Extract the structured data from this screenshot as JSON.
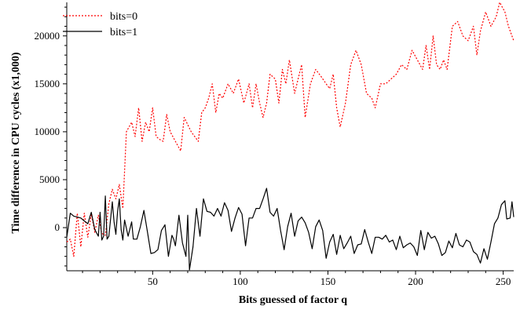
{
  "chart_data": {
    "type": "line",
    "title": "",
    "xlabel": "Bits guessed of factor q",
    "ylabel": "Time difference in CPU cycles (x1,000)",
    "xlim": [
      1,
      256
    ],
    "ylim": [
      -4500,
      23500
    ],
    "x_ticks": [
      50,
      100,
      150,
      200,
      250
    ],
    "y_ticks": [
      0,
      5000,
      10000,
      15000,
      20000
    ],
    "x_tick_labels": [
      "50",
      "100",
      "150",
      "200",
      "250"
    ],
    "y_tick_labels": [
      "0",
      "5000",
      "10000",
      "15000",
      "20000"
    ],
    "grid": false,
    "legend_position": "top-left",
    "series": [
      {
        "name": "bits=0",
        "color": "#ff0000",
        "dash": "dotted",
        "points": [
          [
            1,
            -1500
          ],
          [
            3,
            -1200
          ],
          [
            5,
            -3000
          ],
          [
            7,
            1500
          ],
          [
            9,
            -2000
          ],
          [
            11,
            1500
          ],
          [
            13,
            -1000
          ],
          [
            15,
            1400
          ],
          [
            17,
            -500
          ],
          [
            19,
            1300
          ],
          [
            21,
            -600
          ],
          [
            23,
            -800
          ],
          [
            25,
            2500
          ],
          [
            27,
            4000
          ],
          [
            29,
            3000
          ],
          [
            31,
            4500
          ],
          [
            33,
            2000
          ],
          [
            35,
            10000
          ],
          [
            38,
            11000
          ],
          [
            40,
            9500
          ],
          [
            42,
            12500
          ],
          [
            44,
            9000
          ],
          [
            46,
            11000
          ],
          [
            48,
            10000
          ],
          [
            50,
            12500
          ],
          [
            52,
            9500
          ],
          [
            54,
            9200
          ],
          [
            56,
            9000
          ],
          [
            58,
            11800
          ],
          [
            60,
            10000
          ],
          [
            63,
            9000
          ],
          [
            66,
            8000
          ],
          [
            68,
            11500
          ],
          [
            72,
            10000
          ],
          [
            76,
            9000
          ],
          [
            78,
            12000
          ],
          [
            80,
            12500
          ],
          [
            82,
            13500
          ],
          [
            84,
            15000
          ],
          [
            86,
            12000
          ],
          [
            88,
            14000
          ],
          [
            90,
            13500
          ],
          [
            93,
            15000
          ],
          [
            96,
            14000
          ],
          [
            99,
            15500
          ],
          [
            102,
            13000
          ],
          [
            105,
            15000
          ],
          [
            107,
            12500
          ],
          [
            109,
            15000
          ],
          [
            111,
            13000
          ],
          [
            113,
            11500
          ],
          [
            115,
            13000
          ],
          [
            117,
            16000
          ],
          [
            120,
            15500
          ],
          [
            122,
            13000
          ],
          [
            124,
            16500
          ],
          [
            126,
            15000
          ],
          [
            128,
            17500
          ],
          [
            131,
            14000
          ],
          [
            133,
            15500
          ],
          [
            135,
            17000
          ],
          [
            137,
            11500
          ],
          [
            140,
            15000
          ],
          [
            143,
            16500
          ],
          [
            146,
            15800
          ],
          [
            149,
            15000
          ],
          [
            151,
            14500
          ],
          [
            153,
            16000
          ],
          [
            155,
            12500
          ],
          [
            157,
            10500
          ],
          [
            160,
            13000
          ],
          [
            163,
            17000
          ],
          [
            166,
            18500
          ],
          [
            169,
            17000
          ],
          [
            172,
            14000
          ],
          [
            175,
            13500
          ],
          [
            177,
            12500
          ],
          [
            180,
            15000
          ],
          [
            183,
            15000
          ],
          [
            186,
            15500
          ],
          [
            189,
            16000
          ],
          [
            192,
            17000
          ],
          [
            195,
            16500
          ],
          [
            198,
            18500
          ],
          [
            201,
            17500
          ],
          [
            204,
            16500
          ],
          [
            206,
            19000
          ],
          [
            208,
            16500
          ],
          [
            210,
            20000
          ],
          [
            212,
            17000
          ],
          [
            214,
            16500
          ],
          [
            216,
            17500
          ],
          [
            218,
            16500
          ],
          [
            221,
            21000
          ],
          [
            224,
            21500
          ],
          [
            227,
            20000
          ],
          [
            230,
            19500
          ],
          [
            233,
            21000
          ],
          [
            235,
            18000
          ],
          [
            237,
            20500
          ],
          [
            240,
            22500
          ],
          [
            243,
            21000
          ],
          [
            246,
            22000
          ],
          [
            248,
            23500
          ],
          [
            251,
            22500
          ],
          [
            253,
            21000
          ],
          [
            256,
            19500
          ]
        ]
      },
      {
        "name": "bits=1",
        "color": "#000000",
        "dash": "solid",
        "points": [
          [
            1,
            -1000
          ],
          [
            3,
            1500
          ],
          [
            5,
            1200
          ],
          [
            7,
            1100
          ],
          [
            9,
            1000
          ],
          [
            11,
            700
          ],
          [
            13,
            400
          ],
          [
            15,
            1600
          ],
          [
            17,
            -200
          ],
          [
            19,
            -900
          ],
          [
            20,
            1600
          ],
          [
            21,
            -1300
          ],
          [
            22,
            -900
          ],
          [
            23,
            3300
          ],
          [
            24,
            -1200
          ],
          [
            25,
            -900
          ],
          [
            27,
            2700
          ],
          [
            28,
            600
          ],
          [
            29,
            -700
          ],
          [
            30,
            1700
          ],
          [
            31,
            3000
          ],
          [
            32,
            -200
          ],
          [
            33,
            -1300
          ],
          [
            34,
            800
          ],
          [
            36,
            -900
          ],
          [
            38,
            600
          ],
          [
            39,
            -1200
          ],
          [
            41,
            -1200
          ],
          [
            43,
            100
          ],
          [
            45,
            1800
          ],
          [
            47,
            -400
          ],
          [
            49,
            -2700
          ],
          [
            51,
            -2600
          ],
          [
            53,
            -2300
          ],
          [
            55,
            -300
          ],
          [
            57,
            300
          ],
          [
            59,
            -3000
          ],
          [
            61,
            -800
          ],
          [
            62,
            -1200
          ],
          [
            63,
            -1900
          ],
          [
            65,
            1300
          ],
          [
            67,
            -1600
          ],
          [
            69,
            -3000
          ],
          [
            70,
            1300
          ],
          [
            71,
            -4400
          ],
          [
            73,
            -2000
          ],
          [
            75,
            2000
          ],
          [
            77,
            -900
          ],
          [
            79,
            3000
          ],
          [
            81,
            1700
          ],
          [
            83,
            1600
          ],
          [
            85,
            1200
          ],
          [
            87,
            2000
          ],
          [
            89,
            1200
          ],
          [
            91,
            2600
          ],
          [
            93,
            1800
          ],
          [
            95,
            -400
          ],
          [
            97,
            1000
          ],
          [
            99,
            2100
          ],
          [
            101,
            1400
          ],
          [
            103,
            -1900
          ],
          [
            105,
            1000
          ],
          [
            107,
            1000
          ],
          [
            109,
            2000
          ],
          [
            111,
            2000
          ],
          [
            113,
            3000
          ],
          [
            115,
            4100
          ],
          [
            117,
            1600
          ],
          [
            119,
            1200
          ],
          [
            121,
            2000
          ],
          [
            123,
            -300
          ],
          [
            125,
            -2300
          ],
          [
            127,
            100
          ],
          [
            129,
            1500
          ],
          [
            131,
            -900
          ],
          [
            133,
            700
          ],
          [
            135,
            1100
          ],
          [
            137,
            500
          ],
          [
            139,
            -500
          ],
          [
            141,
            -2200
          ],
          [
            143,
            100
          ],
          [
            145,
            800
          ],
          [
            147,
            -300
          ],
          [
            149,
            -3200
          ],
          [
            151,
            -1500
          ],
          [
            153,
            -700
          ],
          [
            155,
            -2800
          ],
          [
            157,
            -800
          ],
          [
            159,
            -2200
          ],
          [
            161,
            -1600
          ],
          [
            163,
            -900
          ],
          [
            165,
            -2700
          ],
          [
            167,
            -1800
          ],
          [
            169,
            -1700
          ],
          [
            171,
            -200
          ],
          [
            173,
            -1500
          ],
          [
            175,
            -2700
          ],
          [
            177,
            -1000
          ],
          [
            179,
            -1000
          ],
          [
            181,
            -1200
          ],
          [
            183,
            -800
          ],
          [
            185,
            -1500
          ],
          [
            187,
            -1300
          ],
          [
            189,
            -2300
          ],
          [
            191,
            -900
          ],
          [
            193,
            -2100
          ],
          [
            195,
            -1800
          ],
          [
            197,
            -1600
          ],
          [
            199,
            -2000
          ],
          [
            201,
            -2900
          ],
          [
            203,
            -300
          ],
          [
            205,
            -2300
          ],
          [
            207,
            -500
          ],
          [
            209,
            -1100
          ],
          [
            211,
            -900
          ],
          [
            213,
            -1700
          ],
          [
            215,
            -2900
          ],
          [
            217,
            -2600
          ],
          [
            219,
            -1400
          ],
          [
            221,
            -2100
          ],
          [
            223,
            -600
          ],
          [
            225,
            -1800
          ],
          [
            227,
            -2000
          ],
          [
            229,
            -1300
          ],
          [
            231,
            -1500
          ],
          [
            233,
            -2500
          ],
          [
            235,
            -2800
          ],
          [
            237,
            -3700
          ],
          [
            239,
            -2200
          ],
          [
            241,
            -3300
          ],
          [
            243,
            -1500
          ],
          [
            245,
            400
          ],
          [
            247,
            1000
          ],
          [
            249,
            2400
          ],
          [
            251,
            2800
          ],
          [
            252,
            900
          ],
          [
            254,
            1000
          ],
          [
            255,
            2700
          ],
          [
            256,
            1100
          ]
        ]
      }
    ]
  }
}
